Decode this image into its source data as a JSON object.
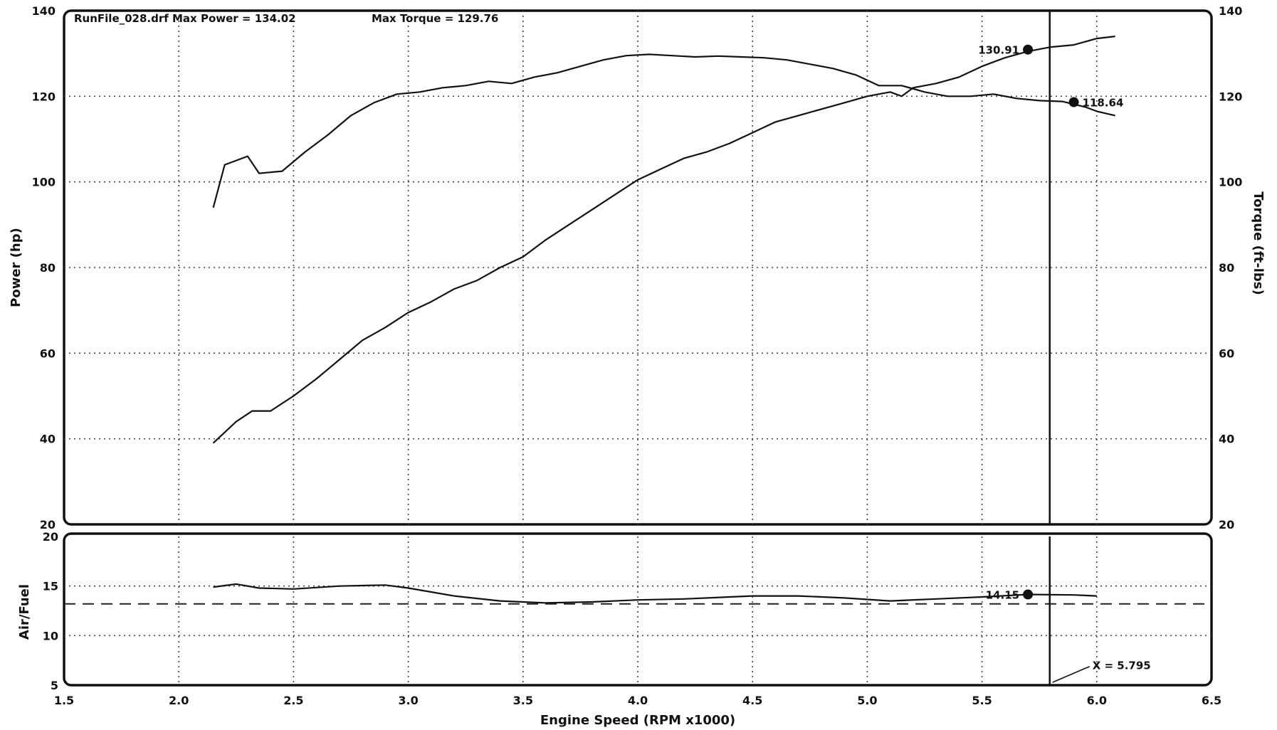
{
  "chart_data": [
    {
      "type": "line",
      "panel": "power-torque",
      "title_header": "RunFile_028.drf Max Power = 134.02",
      "title_torque": "Max Torque = 129.76",
      "xlabel": "Engine Speed (RPM x1000)",
      "ylabel_left": "Power (hp)",
      "ylabel_right": "Torque (ft-lbs)",
      "xlim": [
        1.5,
        6.5
      ],
      "ylim": [
        20,
        140
      ],
      "x_ticks": [
        "1.5",
        "2.0",
        "2.5",
        "3.0",
        "3.5",
        "4.0",
        "4.5",
        "5.0",
        "5.5",
        "6.0",
        "6.5"
      ],
      "y_ticks": [
        "20",
        "40",
        "60",
        "80",
        "100",
        "120",
        "140"
      ],
      "grid": true,
      "cursor_x": 5.795,
      "series": [
        {
          "role": "power",
          "x": [
            2.15,
            2.25,
            2.32,
            2.4,
            2.5,
            2.6,
            2.7,
            2.8,
            2.9,
            3.0,
            3.1,
            3.2,
            3.3,
            3.4,
            3.5,
            3.6,
            3.7,
            3.8,
            3.9,
            4.0,
            4.1,
            4.2,
            4.3,
            4.4,
            4.5,
            4.6,
            4.7,
            4.8,
            4.9,
            5.0,
            5.1,
            5.15,
            5.2,
            5.3,
            5.4,
            5.5,
            5.6,
            5.7,
            5.8,
            5.9,
            6.0,
            6.08
          ],
          "y": [
            39,
            44,
            46.5,
            46.5,
            50,
            54,
            58.5,
            63,
            66,
            69.5,
            72,
            75,
            77,
            80,
            82.5,
            86.5,
            90,
            93.5,
            97,
            100.5,
            103,
            105.5,
            107,
            109,
            111.5,
            114,
            115.5,
            117,
            118.5,
            120,
            121,
            120,
            122,
            123,
            124.5,
            127,
            129,
            130.5,
            131.5,
            132,
            133.5,
            134
          ]
        },
        {
          "role": "torque",
          "x": [
            2.15,
            2.2,
            2.25,
            2.3,
            2.35,
            2.45,
            2.55,
            2.65,
            2.75,
            2.85,
            2.95,
            3.05,
            3.15,
            3.25,
            3.35,
            3.45,
            3.55,
            3.65,
            3.75,
            3.85,
            3.95,
            4.05,
            4.15,
            4.25,
            4.35,
            4.45,
            4.55,
            4.65,
            4.75,
            4.85,
            4.95,
            5.05,
            5.15,
            5.25,
            5.35,
            5.45,
            5.55,
            5.65,
            5.75,
            5.85,
            5.95,
            6.0,
            6.08
          ],
          "y": [
            94,
            104,
            105,
            106,
            102,
            102.5,
            107,
            111,
            115.5,
            118.5,
            120.5,
            121,
            122,
            122.5,
            123.5,
            123,
            124.5,
            125.5,
            127,
            128.5,
            129.5,
            129.8,
            129.5,
            129.2,
            129.4,
            129.2,
            129,
            128.5,
            127.5,
            126.5,
            125,
            122.5,
            122.5,
            121,
            120,
            120,
            120.5,
            119.5,
            119,
            118.8,
            117.5,
            116.5,
            115.5
          ]
        }
      ],
      "markers": [
        {
          "label": "130.91",
          "x": 5.7,
          "y": 130.91
        },
        {
          "label": "118.64",
          "x": 5.9,
          "y": 118.64
        }
      ]
    },
    {
      "type": "line",
      "panel": "air-fuel",
      "ylabel": "Air/Fuel",
      "xlim": [
        1.5,
        6.5
      ],
      "ylim": [
        5,
        20
      ],
      "y_ticks": [
        "5",
        "10",
        "15",
        "20"
      ],
      "reference_line": 13.2,
      "cursor_label": "X = 5.795",
      "series": [
        {
          "role": "air-fuel",
          "x": [
            2.15,
            2.25,
            2.35,
            2.5,
            2.7,
            2.9,
            3.0,
            3.2,
            3.4,
            3.6,
            3.8,
            4.0,
            4.2,
            4.5,
            4.7,
            4.9,
            5.1,
            5.3,
            5.5,
            5.7,
            5.9,
            6.0
          ],
          "y": [
            14.9,
            15.2,
            14.8,
            14.7,
            15.0,
            15.1,
            14.8,
            14.0,
            13.5,
            13.3,
            13.4,
            13.6,
            13.7,
            14.0,
            14.0,
            13.8,
            13.5,
            13.7,
            13.9,
            14.15,
            14.1,
            14.0
          ]
        }
      ],
      "markers": [
        {
          "label": "14.15",
          "x": 5.7,
          "y": 14.15
        }
      ]
    }
  ]
}
